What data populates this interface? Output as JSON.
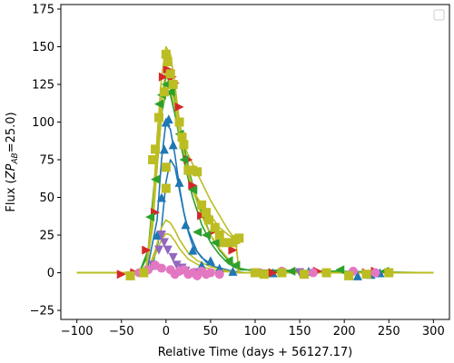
{
  "chart_data": {
    "type": "scatter",
    "title": "",
    "xlabel": "Relative Time (days + 56127.17)",
    "ylabel_parts": {
      "pre": "Flux (",
      "zp": "ZP",
      "sub": "AB",
      "post": "=25.0)"
    },
    "xlim": [
      -118,
      318
    ],
    "ylim": [
      -31,
      178
    ],
    "xticks": [
      -100,
      -50,
      0,
      50,
      100,
      150,
      200,
      250,
      300
    ],
    "yticks": [
      -25,
      0,
      25,
      50,
      75,
      100,
      125,
      150,
      175
    ],
    "legend": {
      "placement": "top-right",
      "entries": []
    },
    "grid": false,
    "x_range_model": [
      -100,
      300
    ],
    "series": [
      {
        "color": "#1f77b4",
        "marker": "triangle-up",
        "points": [
          [
            -40,
            -1
          ],
          [
            -25,
            0
          ],
          [
            -15,
            5
          ],
          [
            -10,
            25
          ],
          [
            -5,
            50
          ],
          [
            -2,
            82
          ],
          [
            0,
            100
          ],
          [
            3,
            102
          ],
          [
            8,
            85
          ],
          [
            15,
            60
          ],
          [
            22,
            32
          ],
          [
            30,
            15
          ],
          [
            40,
            5
          ],
          [
            50,
            8
          ],
          [
            60,
            3
          ],
          [
            75,
            1
          ],
          [
            120,
            0
          ],
          [
            160,
            1
          ],
          [
            215,
            -2
          ],
          [
            230,
            -1
          ],
          [
            240,
            0
          ]
        ],
        "curves": [
          [
            [
              -100,
              0
            ],
            [
              -30,
              0
            ],
            [
              -20,
              5
            ],
            [
              -10,
              35
            ],
            [
              -5,
              75
            ],
            [
              0,
              100
            ],
            [
              5,
              95
            ],
            [
              10,
              78
            ],
            [
              15,
              57
            ],
            [
              20,
              40
            ],
            [
              25,
              27
            ],
            [
              30,
              18
            ],
            [
              40,
              10
            ],
            [
              55,
              4
            ],
            [
              75,
              1
            ],
            [
              90,
              0
            ],
            [
              300,
              0
            ]
          ],
          [
            [
              -100,
              0
            ],
            [
              -25,
              0
            ],
            [
              -15,
              5
            ],
            [
              -5,
              30
            ],
            [
              0,
              60
            ],
            [
              5,
              75
            ],
            [
              10,
              70
            ],
            [
              15,
              55
            ],
            [
              20,
              40
            ],
            [
              25,
              28
            ],
            [
              35,
              14
            ],
            [
              45,
              7
            ],
            [
              60,
              2
            ],
            [
              80,
              0
            ],
            [
              300,
              0
            ]
          ]
        ]
      },
      {
        "color": "#d62728",
        "marker": "triangle-right",
        "points": [
          [
            -50,
            -1
          ],
          [
            -35,
            0
          ],
          [
            -22,
            15
          ],
          [
            -12,
            40
          ],
          [
            -3,
            130
          ],
          [
            2,
            135
          ],
          [
            7,
            130
          ],
          [
            10,
            126
          ],
          [
            15,
            110
          ],
          [
            25,
            75
          ],
          [
            30,
            58
          ],
          [
            40,
            38
          ],
          [
            55,
            28
          ],
          [
            65,
            20
          ],
          [
            75,
            15
          ],
          [
            120,
            0
          ],
          [
            170,
            1
          ],
          [
            225,
            0
          ],
          [
            235,
            1
          ]
        ],
        "curves": []
      },
      {
        "color": "#2ca02c",
        "marker": "triangle-left",
        "points": [
          [
            -18,
            37
          ],
          [
            -12,
            62
          ],
          [
            -8,
            112
          ],
          [
            -5,
            118
          ],
          [
            0,
            125
          ],
          [
            5,
            120
          ],
          [
            15,
            92
          ],
          [
            20,
            75
          ],
          [
            25,
            68
          ],
          [
            30,
            55
          ],
          [
            35,
            27
          ],
          [
            45,
            25
          ],
          [
            55,
            20
          ],
          [
            70,
            8
          ],
          [
            78,
            5
          ],
          [
            140,
            1
          ],
          [
            195,
            2
          ],
          [
            245,
            1
          ]
        ],
        "curves": [
          [
            [
              -100,
              0
            ],
            [
              -30,
              0
            ],
            [
              -20,
              15
            ],
            [
              -10,
              80
            ],
            [
              -5,
              115
            ],
            [
              0,
              130
            ],
            [
              5,
              127
            ],
            [
              10,
              115
            ],
            [
              15,
              100
            ],
            [
              20,
              85
            ],
            [
              25,
              70
            ],
            [
              30,
              58
            ],
            [
              40,
              40
            ],
            [
              50,
              25
            ],
            [
              60,
              15
            ],
            [
              70,
              8
            ],
            [
              82,
              3
            ],
            [
              100,
              1
            ],
            [
              300,
              0
            ]
          ],
          [
            [
              -100,
              0
            ],
            [
              -30,
              0
            ],
            [
              -20,
              12
            ],
            [
              -10,
              70
            ],
            [
              -5,
              105
            ],
            [
              0,
              120
            ],
            [
              5,
              118
            ],
            [
              10,
              105
            ],
            [
              15,
              90
            ],
            [
              20,
              75
            ],
            [
              25,
              62
            ],
            [
              30,
              50
            ],
            [
              40,
              32
            ],
            [
              50,
              20
            ],
            [
              60,
              12
            ],
            [
              70,
              6
            ],
            [
              82,
              2
            ],
            [
              300,
              0
            ]
          ]
        ]
      },
      {
        "color": "#9467bd",
        "marker": "triangle-down",
        "points": [
          [
            -15,
            5
          ],
          [
            -8,
            15
          ],
          [
            -5,
            25
          ],
          [
            -2,
            20
          ],
          [
            2,
            15
          ],
          [
            8,
            10
          ],
          [
            12,
            5
          ],
          [
            18,
            3
          ],
          [
            22,
            1
          ],
          [
            35,
            0
          ],
          [
            150,
            0
          ]
        ],
        "curves": []
      },
      {
        "color": "#e377c2",
        "marker": "circle",
        "points": [
          [
            -30,
            0
          ],
          [
            -20,
            2
          ],
          [
            -12,
            5
          ],
          [
            -5,
            3
          ],
          [
            5,
            2
          ],
          [
            10,
            -1
          ],
          [
            15,
            1
          ],
          [
            20,
            2
          ],
          [
            25,
            -1
          ],
          [
            30,
            0
          ],
          [
            35,
            -2
          ],
          [
            40,
            1
          ],
          [
            45,
            -1
          ],
          [
            50,
            0
          ],
          [
            60,
            -1
          ],
          [
            105,
            0
          ],
          [
            130,
            1
          ],
          [
            165,
            0
          ],
          [
            210,
            1
          ],
          [
            235,
            0
          ]
        ],
        "curves": []
      },
      {
        "color": "#bcbd22",
        "marker": "square",
        "points": [
          [
            -40,
            -2
          ],
          [
            -25,
            0
          ],
          [
            -15,
            75
          ],
          [
            -12,
            82
          ],
          [
            -8,
            103
          ],
          [
            -2,
            120
          ],
          [
            0,
            145
          ],
          [
            2,
            140
          ],
          [
            5,
            132
          ],
          [
            8,
            125
          ],
          [
            0,
            56
          ],
          [
            0,
            70
          ],
          [
            15,
            100
          ],
          [
            18,
            90
          ],
          [
            20,
            85
          ],
          [
            25,
            68
          ],
          [
            30,
            68
          ],
          [
            35,
            67
          ],
          [
            40,
            45
          ],
          [
            45,
            40
          ],
          [
            48,
            35
          ],
          [
            55,
            30
          ],
          [
            60,
            25
          ],
          [
            65,
            20
          ],
          [
            75,
            20
          ],
          [
            78,
            22
          ],
          [
            82,
            23
          ],
          [
            100,
            0
          ],
          [
            110,
            -1
          ],
          [
            130,
            0
          ],
          [
            155,
            -1
          ],
          [
            180,
            0
          ],
          [
            205,
            -2
          ],
          [
            225,
            -1
          ],
          [
            250,
            0
          ]
        ],
        "curves": [
          [
            [
              -100,
              0
            ],
            [
              -30,
              0
            ],
            [
              -22,
              5
            ],
            [
              -15,
              40
            ],
            [
              -10,
              90
            ],
            [
              -5,
              130
            ],
            [
              0,
              150
            ],
            [
              5,
              145
            ],
            [
              10,
              125
            ],
            [
              15,
              100
            ],
            [
              20,
              80
            ],
            [
              25,
              65
            ],
            [
              30,
              55
            ],
            [
              40,
              45
            ],
            [
              50,
              38
            ],
            [
              60,
              30
            ],
            [
              70,
              25
            ],
            [
              78,
              22
            ],
            [
              82,
              0
            ],
            [
              300,
              0
            ]
          ],
          [
            [
              -100,
              0
            ],
            [
              -30,
              0
            ],
            [
              -22,
              4
            ],
            [
              -15,
              35
            ],
            [
              -10,
              80
            ],
            [
              -5,
              115
            ],
            [
              0,
              135
            ],
            [
              5,
              132
            ],
            [
              10,
              118
            ],
            [
              15,
              98
            ],
            [
              20,
              85
            ],
            [
              25,
              78
            ],
            [
              30,
              72
            ],
            [
              40,
              60
            ],
            [
              50,
              48
            ],
            [
              60,
              38
            ],
            [
              70,
              28
            ],
            [
              78,
              22
            ],
            [
              82,
              0
            ],
            [
              300,
              0
            ]
          ],
          [
            [
              -100,
              0
            ],
            [
              -30,
              0
            ],
            [
              -22,
              3
            ],
            [
              -15,
              30
            ],
            [
              -10,
              70
            ],
            [
              -5,
              105
            ],
            [
              0,
              125
            ],
            [
              5,
              122
            ],
            [
              10,
              110
            ],
            [
              15,
              92
            ],
            [
              20,
              80
            ],
            [
              25,
              68
            ],
            [
              30,
              55
            ],
            [
              40,
              38
            ],
            [
              50,
              25
            ],
            [
              60,
              16
            ],
            [
              70,
              9
            ],
            [
              78,
              5
            ],
            [
              82,
              0
            ],
            [
              300,
              0
            ]
          ],
          [
            [
              -100,
              0
            ],
            [
              -30,
              0
            ],
            [
              -20,
              2
            ],
            [
              -12,
              15
            ],
            [
              -5,
              30
            ],
            [
              0,
              35
            ],
            [
              5,
              33
            ],
            [
              10,
              28
            ],
            [
              15,
              22
            ],
            [
              25,
              13
            ],
            [
              35,
              8
            ],
            [
              50,
              4
            ],
            [
              70,
              1
            ],
            [
              82,
              0
            ],
            [
              300,
              0
            ]
          ],
          [
            [
              -100,
              0
            ],
            [
              -30,
              0
            ],
            [
              -20,
              2
            ],
            [
              -12,
              12
            ],
            [
              -5,
              22
            ],
            [
              0,
              26
            ],
            [
              5,
              25
            ],
            [
              10,
              21
            ],
            [
              15,
              16
            ],
            [
              25,
              9
            ],
            [
              40,
              4
            ],
            [
              60,
              1
            ],
            [
              82,
              0
            ],
            [
              300,
              0
            ]
          ]
        ]
      }
    ]
  }
}
